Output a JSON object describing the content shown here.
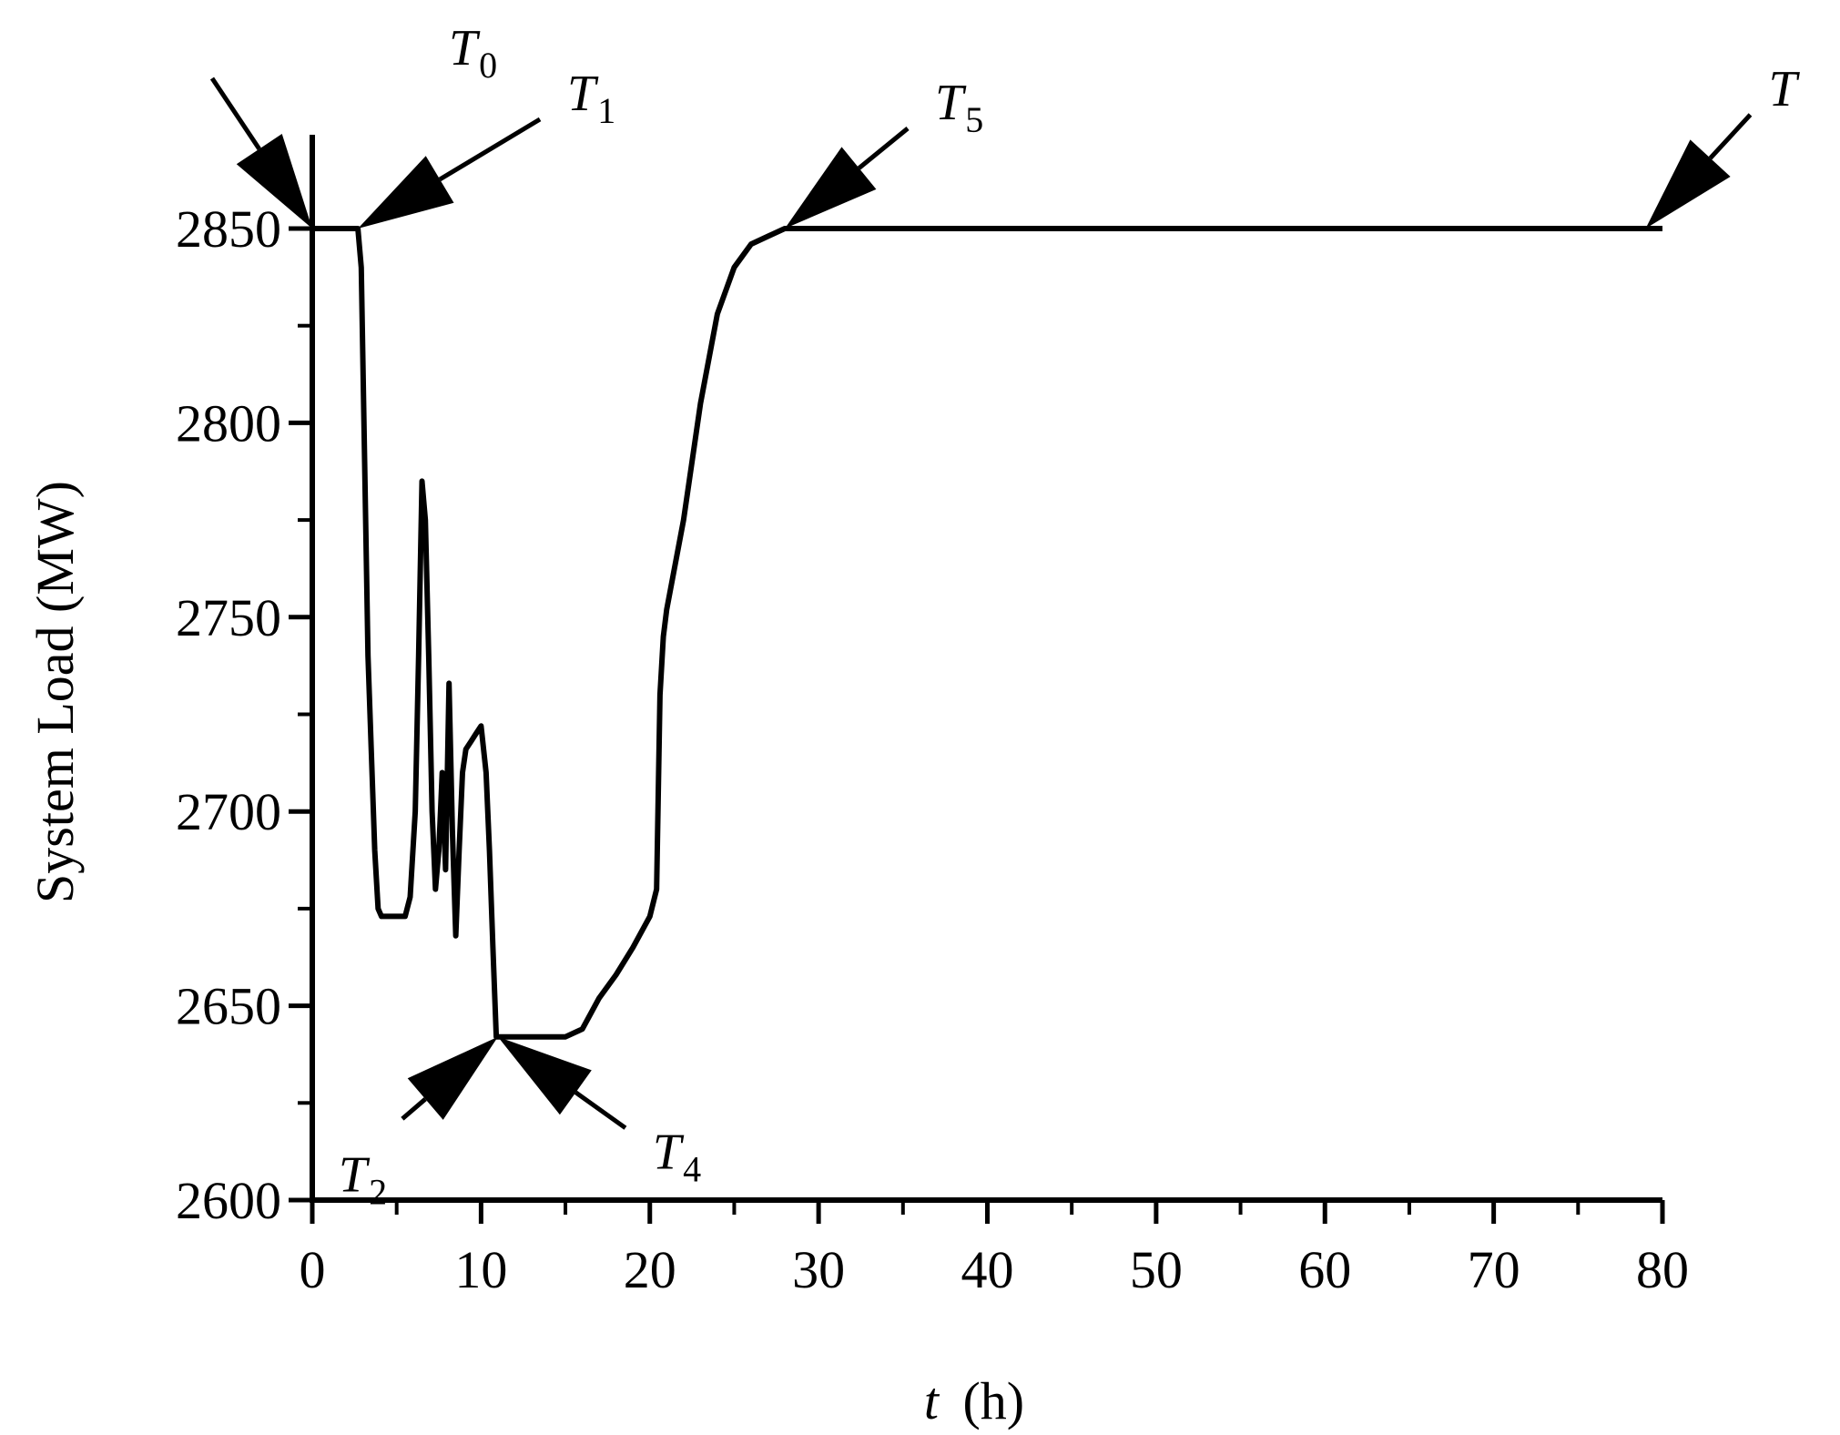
{
  "chart_data": {
    "type": "line",
    "xlabel_var": "t",
    "xlabel_unit": "(h)",
    "ylabel": "System Load (MW)",
    "xlim": [
      0,
      80
    ],
    "ylim": [
      2600,
      2875
    ],
    "x_ticks": [
      0,
      10,
      20,
      30,
      40,
      50,
      60,
      70,
      80
    ],
    "x_tick_labels": [
      "0",
      "10",
      "20",
      "30",
      "40",
      "50",
      "60",
      "70",
      "80"
    ],
    "y_ticks": [
      2600,
      2650,
      2700,
      2750,
      2800,
      2850
    ],
    "y_tick_labels": [
      "2600",
      "2650",
      "2700",
      "2750",
      "2800",
      "2850"
    ],
    "grid": false,
    "line_color": "#000000",
    "series": [
      {
        "x": [
          0,
          2.7,
          2.9,
          3.1,
          3.3,
          3.5,
          3.7,
          3.9,
          4.1,
          4.5,
          5.0,
          5.5,
          5.8,
          6.1,
          6.3,
          6.5,
          6.7,
          6.9,
          7.1,
          7.3,
          7.5,
          7.7,
          7.9,
          8.1,
          8.3,
          8.5,
          8.7,
          8.9,
          9.1,
          9.4,
          9.7,
          10.0,
          10.3,
          10.5,
          10.7,
          10.9,
          11.0,
          12,
          13,
          14,
          15,
          16,
          16.5,
          17,
          18,
          19,
          20,
          20.4,
          20.6,
          20.8,
          21,
          22,
          23,
          24,
          25,
          26,
          27,
          28,
          80
        ],
        "y": [
          2850,
          2850,
          2840,
          2790,
          2740,
          2715,
          2690,
          2675,
          2673,
          2673,
          2673,
          2673,
          2678,
          2700,
          2740,
          2785,
          2775,
          2740,
          2700,
          2680,
          2690,
          2710,
          2685,
          2733,
          2695,
          2668,
          2690,
          2710,
          2716,
          2718,
          2720,
          2722,
          2710,
          2690,
          2665,
          2642,
          2642,
          2642,
          2642,
          2642,
          2642,
          2644,
          2648,
          2652,
          2658,
          2665,
          2673,
          2680,
          2730,
          2745,
          2752,
          2775,
          2805,
          2828,
          2840,
          2846,
          2848,
          2850,
          2850
        ]
      }
    ],
    "annotations": [
      {
        "base": "T",
        "sub": "0",
        "x": 0,
        "y": 2850
      },
      {
        "base": "T",
        "sub": "1",
        "x": 2.7,
        "y": 2850
      },
      {
        "base": "T",
        "sub": "2",
        "x": 11.0,
        "y": 2642
      },
      {
        "base": "T",
        "sub": "4",
        "x": 11.0,
        "y": 2642
      },
      {
        "base": "T",
        "sub": "5",
        "x": 28,
        "y": 2850
      },
      {
        "base": "T",
        "sub": "",
        "x": 79,
        "y": 2850
      }
    ]
  }
}
